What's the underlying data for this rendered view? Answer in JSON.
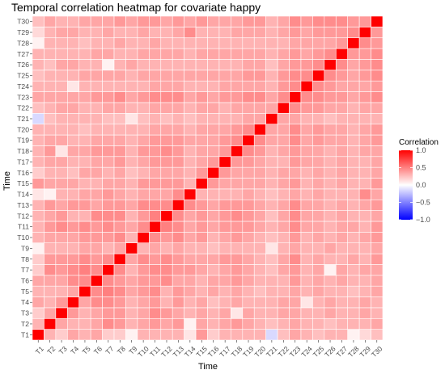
{
  "chart_data": {
    "type": "heatmap",
    "title": "Temporal correlation heatmap for covariate happy",
    "xlabel": "Time",
    "ylabel": "Time",
    "labels": [
      "T1",
      "T2",
      "T3",
      "T4",
      "T5",
      "T6",
      "T7",
      "T8",
      "T9",
      "T10",
      "T11",
      "T12",
      "T13",
      "T14",
      "T15",
      "T16",
      "T17",
      "T18",
      "T19",
      "T20",
      "T21",
      "T22",
      "T23",
      "T24",
      "T25",
      "T26",
      "T27",
      "T28",
      "T29",
      "T30"
    ],
    "color_scale": {
      "low": "#0000ff",
      "mid": "#ffffff",
      "high": "#ff0000",
      "limits": [
        -1,
        1
      ]
    },
    "legend": {
      "title": "Correlation",
      "ticks": [
        "1.0",
        "0.5",
        "0.0",
        "−0.5",
        "−1.0"
      ],
      "tick_values": [
        1,
        0.5,
        0,
        -0.5,
        -1
      ],
      "position": "right"
    },
    "grid": true,
    "note": "symmetric matrix; values listed as upper triangle rows starting at the diagonal",
    "values_upper": [
      [
        1,
        0.3,
        0.2,
        0.35,
        0.3,
        0.35,
        0.2,
        0.2,
        0.05,
        0.3,
        0.3,
        0.3,
        0.3,
        0.1,
        0.4,
        0.2,
        0.3,
        0.3,
        0.3,
        0.3,
        -0.15,
        0.25,
        0.35,
        0.3,
        0.25,
        0.3,
        0.3,
        0.05,
        0.15,
        0.25
      ],
      [
        1,
        0.35,
        0.3,
        0.3,
        0.35,
        0.45,
        0.4,
        0.3,
        0.35,
        0.4,
        0.35,
        0.4,
        0.05,
        0.35,
        0.3,
        0.35,
        0.4,
        0.35,
        0.3,
        0.25,
        0.3,
        0.35,
        0.3,
        0.3,
        0.25,
        0.3,
        0.3,
        0.3,
        0.35
      ],
      [
        1,
        0.4,
        0.3,
        0.35,
        0.4,
        0.4,
        0.3,
        0.35,
        0.45,
        0.4,
        0.35,
        0.3,
        0.35,
        0.3,
        0.35,
        0.1,
        0.35,
        0.3,
        0.3,
        0.35,
        0.35,
        0.3,
        0.3,
        0.35,
        0.3,
        0.3,
        0.35,
        0.3
      ],
      [
        1,
        0.35,
        0.45,
        0.45,
        0.4,
        0.3,
        0.35,
        0.4,
        0.3,
        0.4,
        0.3,
        0.35,
        0.25,
        0.3,
        0.35,
        0.3,
        0.3,
        0.3,
        0.35,
        0.35,
        0.1,
        0.3,
        0.35,
        0.3,
        0.3,
        0.35,
        0.3
      ],
      [
        1,
        0.45,
        0.5,
        0.45,
        0.35,
        0.4,
        0.45,
        0.3,
        0.4,
        0.35,
        0.3,
        0.35,
        0.3,
        0.35,
        0.3,
        0.25,
        0.3,
        0.3,
        0.35,
        0.3,
        0.35,
        0.3,
        0.3,
        0.25,
        0.3,
        0.35
      ],
      [
        1,
        0.45,
        0.4,
        0.35,
        0.4,
        0.4,
        0.45,
        0.35,
        0.35,
        0.3,
        0.35,
        0.35,
        0.4,
        0.35,
        0.3,
        0.3,
        0.3,
        0.4,
        0.3,
        0.35,
        0.3,
        0.35,
        0.3,
        0.3,
        0.35
      ],
      [
        1,
        0.45,
        0.3,
        0.4,
        0.45,
        0.45,
        0.4,
        0.4,
        0.35,
        0.3,
        0.35,
        0.4,
        0.35,
        0.3,
        0.25,
        0.35,
        0.4,
        0.3,
        0.35,
        0.05,
        0.35,
        0.3,
        0.35,
        0.35
      ],
      [
        1,
        0.35,
        0.45,
        0.4,
        0.45,
        0.4,
        0.35,
        0.35,
        0.35,
        0.4,
        0.4,
        0.35,
        0.3,
        0.25,
        0.35,
        0.45,
        0.3,
        0.35,
        0.3,
        0.3,
        0.35,
        0.3,
        0.4
      ],
      [
        1,
        0.3,
        0.35,
        0.3,
        0.35,
        0.3,
        0.3,
        0.25,
        0.3,
        0.3,
        0.3,
        0.3,
        0.1,
        0.3,
        0.35,
        0.3,
        0.3,
        0.35,
        0.3,
        0.3,
        0.3,
        0.35
      ],
      [
        1,
        0.45,
        0.4,
        0.45,
        0.35,
        0.4,
        0.3,
        0.35,
        0.4,
        0.35,
        0.3,
        0.25,
        0.3,
        0.4,
        0.3,
        0.35,
        0.3,
        0.35,
        0.3,
        0.35,
        0.4
      ],
      [
        1,
        0.5,
        0.45,
        0.35,
        0.4,
        0.35,
        0.4,
        0.4,
        0.4,
        0.35,
        0.3,
        0.35,
        0.45,
        0.35,
        0.35,
        0.3,
        0.35,
        0.35,
        0.3,
        0.4
      ],
      [
        1,
        0.45,
        0.35,
        0.4,
        0.35,
        0.4,
        0.45,
        0.4,
        0.35,
        0.25,
        0.35,
        0.45,
        0.35,
        0.35,
        0.3,
        0.35,
        0.3,
        0.3,
        0.35
      ],
      [
        1,
        0.45,
        0.4,
        0.35,
        0.4,
        0.4,
        0.4,
        0.35,
        0.3,
        0.35,
        0.45,
        0.35,
        0.35,
        0.3,
        0.35,
        0.3,
        0.35,
        0.4
      ],
      [
        1,
        0.3,
        0.3,
        0.3,
        0.3,
        0.35,
        0.3,
        0.25,
        0.3,
        0.35,
        0.3,
        0.35,
        0.3,
        0.3,
        0.3,
        0.45,
        0.35
      ],
      [
        1,
        0.4,
        0.35,
        0.35,
        0.35,
        0.35,
        0.3,
        0.35,
        0.4,
        0.3,
        0.35,
        0.3,
        0.35,
        0.3,
        0.3,
        0.4
      ],
      [
        1,
        0.4,
        0.35,
        0.35,
        0.35,
        0.3,
        0.35,
        0.35,
        0.3,
        0.35,
        0.3,
        0.35,
        0.3,
        0.3,
        0.35
      ],
      [
        1,
        0.4,
        0.4,
        0.35,
        0.3,
        0.3,
        0.4,
        0.35,
        0.35,
        0.3,
        0.35,
        0.3,
        0.3,
        0.35
      ],
      [
        1,
        0.45,
        0.4,
        0.3,
        0.35,
        0.4,
        0.35,
        0.35,
        0.3,
        0.35,
        0.3,
        0.35,
        0.35
      ],
      [
        1,
        0.45,
        0.35,
        0.35,
        0.45,
        0.35,
        0.4,
        0.35,
        0.35,
        0.3,
        0.35,
        0.4
      ],
      [
        1,
        0.35,
        0.35,
        0.45,
        0.35,
        0.4,
        0.35,
        0.35,
        0.3,
        0.35,
        0.4
      ],
      [
        1,
        0.35,
        0.35,
        0.3,
        0.3,
        0.25,
        0.3,
        0.3,
        0.3,
        0.3
      ],
      [
        1,
        0.45,
        0.4,
        0.4,
        0.35,
        0.35,
        0.3,
        0.35,
        0.35
      ],
      [
        1,
        0.45,
        0.45,
        0.4,
        0.4,
        0.35,
        0.4,
        0.45
      ],
      [
        1,
        0.45,
        0.4,
        0.35,
        0.35,
        0.35,
        0.4
      ],
      [
        1,
        0.45,
        0.4,
        0.35,
        0.4,
        0.45
      ],
      [
        1,
        0.45,
        0.35,
        0.4,
        0.45
      ],
      [
        1,
        0.4,
        0.4,
        0.45
      ],
      [
        1,
        0.45,
        0.4
      ],
      [
        1,
        0.4
      ],
      [
        1
      ]
    ]
  }
}
